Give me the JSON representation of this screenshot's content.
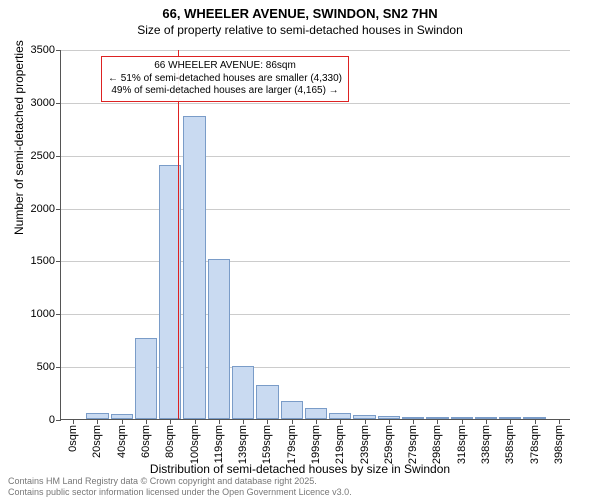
{
  "title": {
    "main": "66, WHEELER AVENUE, SWINDON, SN2 7HN",
    "sub": "Size of property relative to semi-detached houses in Swindon",
    "fontsize_main": 13,
    "fontsize_sub": 12
  },
  "chart": {
    "type": "histogram",
    "background_color": "#ffffff",
    "grid_color": "#cccccc",
    "axis_color": "#555555",
    "bar_fill": "#c9daf1",
    "bar_border": "#7a9cc8",
    "bar_width_ratio": 0.92,
    "ylabel": "Number of semi-detached properties",
    "xlabel": "Distribution of semi-detached houses by size in Swindon",
    "label_fontsize": 12,
    "tick_fontsize": 11,
    "ylim": [
      0,
      3500
    ],
    "ytick_step": 500,
    "categories": [
      "0sqm",
      "20sqm",
      "40sqm",
      "60sqm",
      "80sqm",
      "100sqm",
      "119sqm",
      "139sqm",
      "159sqm",
      "179sqm",
      "199sqm",
      "219sqm",
      "239sqm",
      "259sqm",
      "279sqm",
      "298sqm",
      "318sqm",
      "338sqm",
      "358sqm",
      "378sqm",
      "398sqm"
    ],
    "values": [
      0,
      60,
      50,
      770,
      2400,
      2870,
      1510,
      500,
      320,
      170,
      100,
      60,
      40,
      30,
      20,
      10,
      10,
      5,
      5,
      5,
      0
    ]
  },
  "marker": {
    "color": "#d22",
    "position_index": 4.3,
    "lines": [
      "66 WHEELER AVENUE: 86sqm",
      "← 51% of semi-detached houses are smaller (4,330)",
      "49% of semi-detached houses are larger (4,165) →"
    ]
  },
  "footer": {
    "line1": "Contains HM Land Registry data © Crown copyright and database right 2025.",
    "line2": "Contains public sector information licensed under the Open Government Licence v3.0.",
    "color": "#777777",
    "fontsize": 9
  }
}
